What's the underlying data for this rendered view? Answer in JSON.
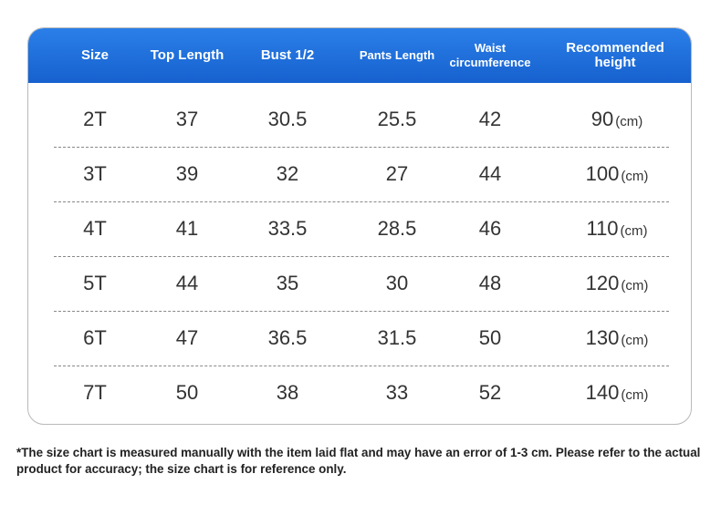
{
  "table": {
    "headers": [
      "Size",
      "Top Length",
      "Bust 1/2",
      "Pants Length",
      "Waist circumference",
      "Recommended height"
    ],
    "rows": [
      [
        "2T",
        "37",
        "30.5",
        "25.5",
        "42",
        "90",
        "(cm)"
      ],
      [
        "3T",
        "39",
        "32",
        "27",
        "44",
        "100",
        "(cm)"
      ],
      [
        "4T",
        "41",
        "33.5",
        "28.5",
        "46",
        "110",
        "(cm)"
      ],
      [
        "5T",
        "44",
        "35",
        "30",
        "48",
        "120",
        "(cm)"
      ],
      [
        "6T",
        "47",
        "36.5",
        "31.5",
        "50",
        "130",
        "(cm)"
      ],
      [
        "7T",
        "50",
        "38",
        "33",
        "52",
        "140",
        "(cm)"
      ]
    ]
  },
  "note": "*The size chart is measured manually with the item laid flat and may have an error of 1-3 cm. Please refer to the actual product for accuracy; the size chart is for reference only."
}
